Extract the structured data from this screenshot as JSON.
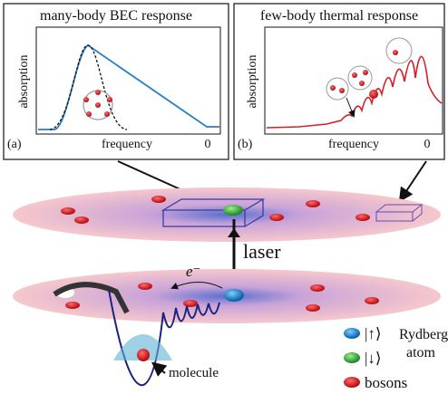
{
  "panels": [
    {
      "title": "many-body BEC response",
      "y_label": "absorption",
      "x_label": "frequency",
      "x_tick": "0",
      "tag": "(a)"
    },
    {
      "title": "few-body thermal response",
      "y_label": "absorption",
      "x_label": "frequency",
      "x_tick": "0",
      "tag": "(b)"
    }
  ],
  "scene": {
    "laser": "laser",
    "electron": "e⁻",
    "molecule": "molecule"
  },
  "legend": [
    {
      "state": "|↑⟩",
      "label_lines": [
        "Rydberg-",
        "atom"
      ]
    },
    {
      "state": "|↓⟩"
    },
    {
      "label": "bosons"
    }
  ]
}
